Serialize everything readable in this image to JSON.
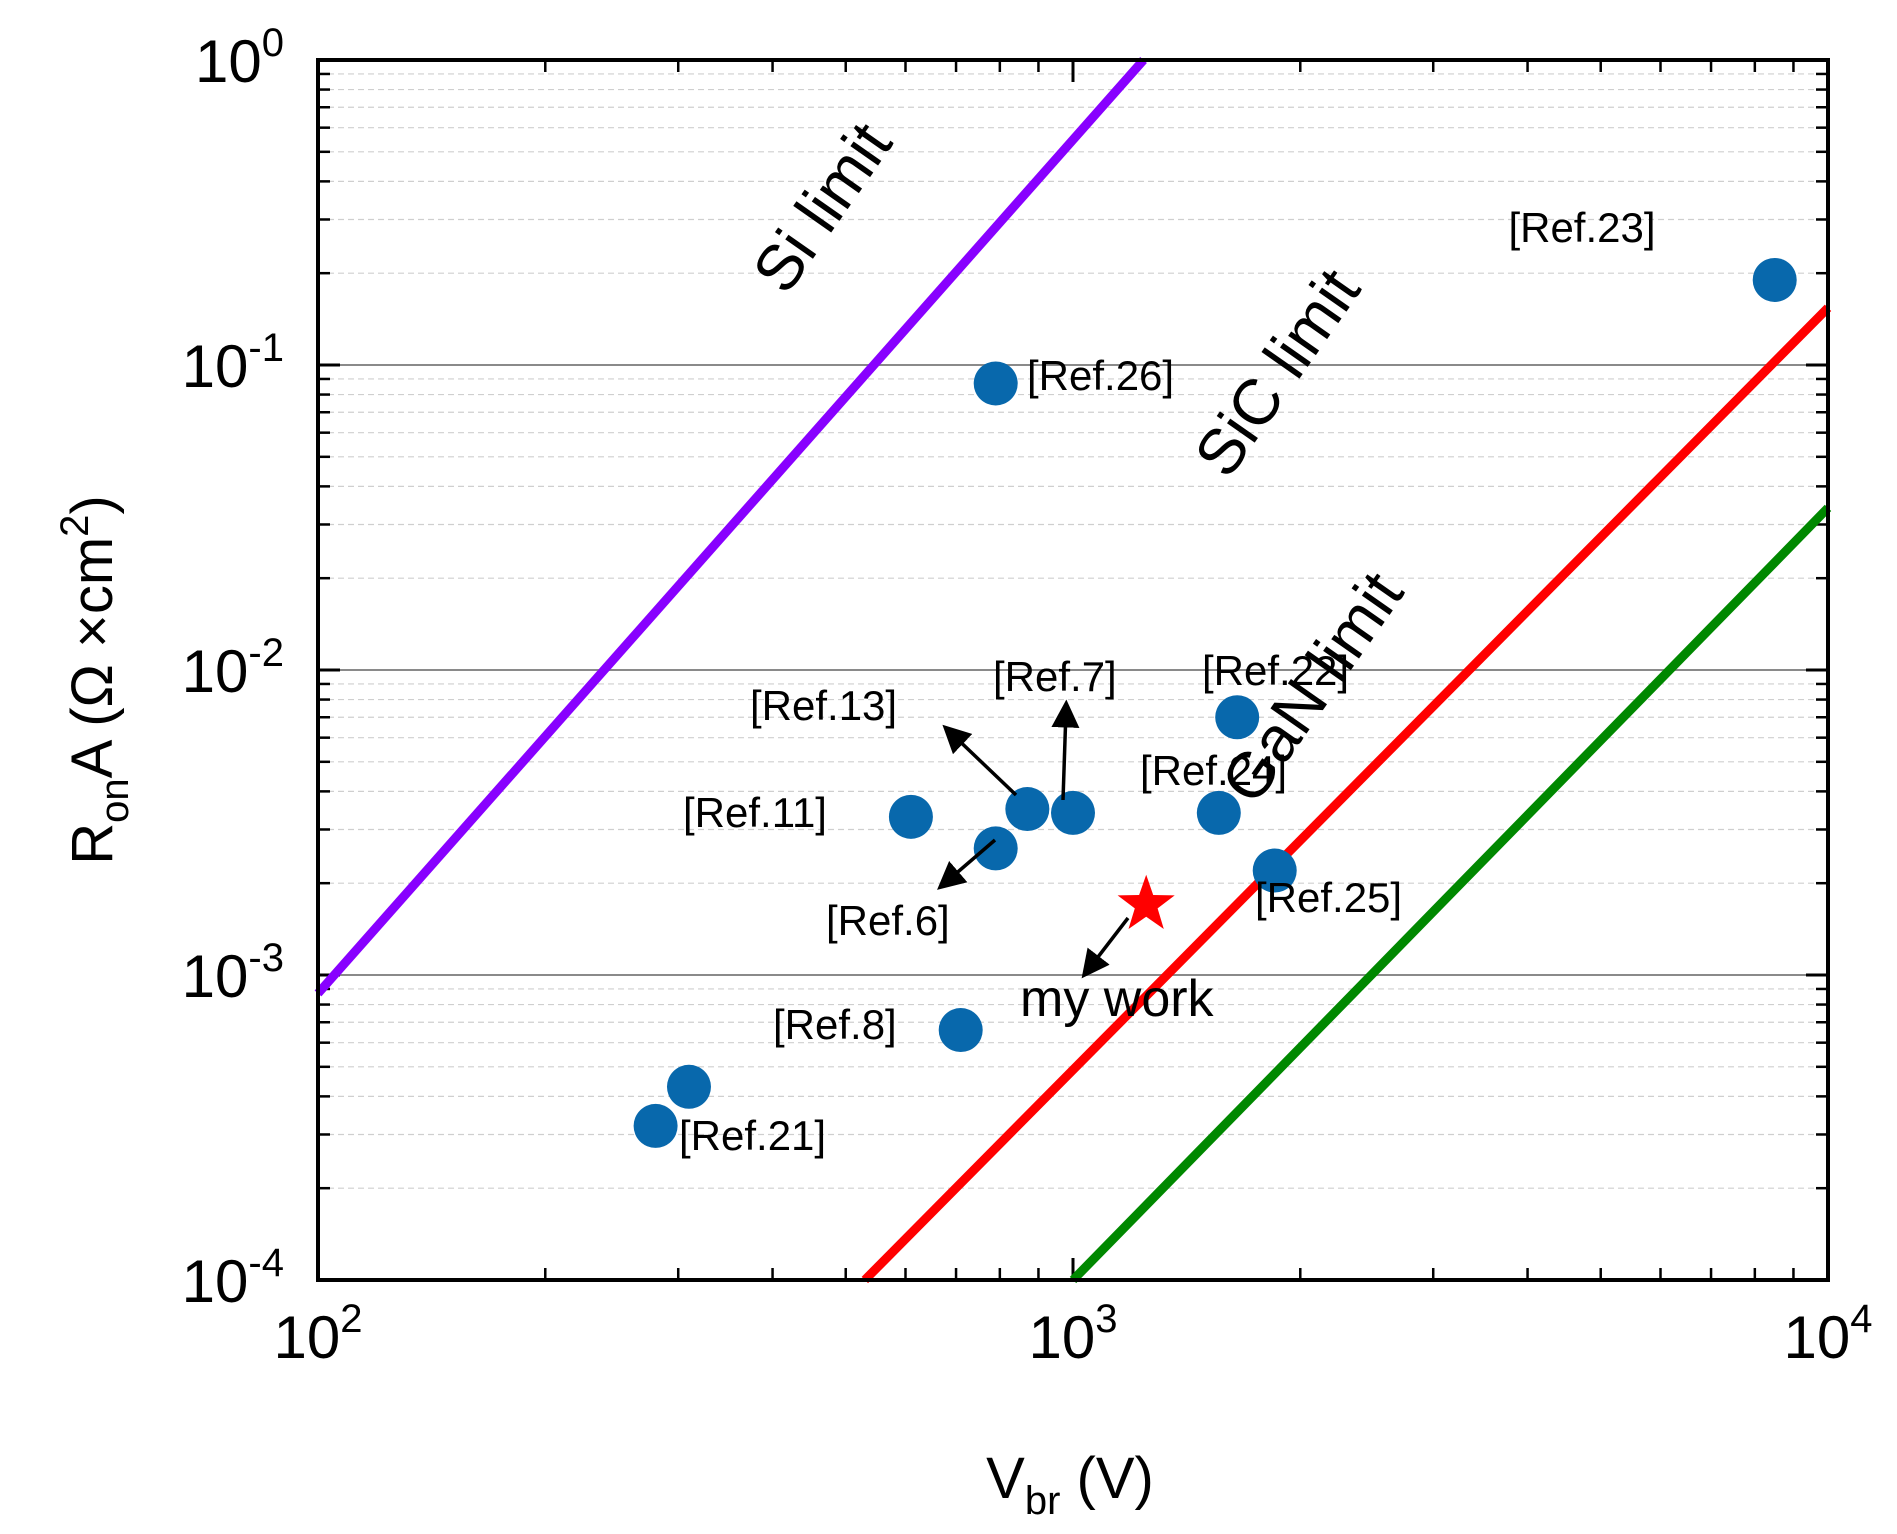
{
  "chart_data": {
    "type": "scatter",
    "xlabel": {
      "main": "V",
      "sub": "br",
      "rest": " (V)"
    },
    "ylabel": {
      "main": "R",
      "sub": "on",
      "mid": "A (Ω ×cm",
      "sup": "2",
      "end": ")"
    },
    "x_scale": "log",
    "y_scale": "log",
    "xlim": [
      100,
      10000
    ],
    "ylim": [
      0.0001,
      1
    ],
    "x_ticks": [
      {
        "value": 100,
        "base": "10",
        "exp": "2"
      },
      {
        "value": 1000,
        "base": "10",
        "exp": "3"
      },
      {
        "value": 10000,
        "base": "10",
        "exp": "4"
      }
    ],
    "y_ticks": [
      {
        "value": 0.0001,
        "base": "10",
        "exp": "-4"
      },
      {
        "value": 0.001,
        "base": "10",
        "exp": "-3"
      },
      {
        "value": 0.01,
        "base": "10",
        "exp": "-2"
      },
      {
        "value": 0.1,
        "base": "10",
        "exp": "-1"
      },
      {
        "value": 1,
        "base": "10",
        "exp": "0"
      }
    ],
    "grid": "major solid gray, minor dashed light gray",
    "colors": {
      "points": "#0868ac",
      "star": "#ff0000",
      "si_limit": "#8800ff",
      "sic_limit": "#ff0000",
      "gan_limit": "#008800"
    },
    "lines": [
      {
        "label": "Si limit",
        "color": "#8800ff",
        "x": [
          100,
          1240
        ],
        "y": [
          0.00087,
          1
        ]
      },
      {
        "label": "SiC limit",
        "color": "#ff0000",
        "x": [
          530,
          10000
        ],
        "y": [
          0.0001,
          0.154
        ]
      },
      {
        "label": "GaN limit",
        "color": "#008800",
        "x": [
          1000,
          10000
        ],
        "y": [
          0.0001,
          0.034
        ]
      }
    ],
    "points": [
      {
        "label": "[Ref.21]",
        "x": [
          280,
          310
        ],
        "y": [
          0.00032,
          0.00043
        ]
      },
      {
        "label": "[Ref.8]",
        "x": [
          710
        ],
        "y": [
          0.00066
        ]
      },
      {
        "label": "[Ref.11]",
        "x": [
          610
        ],
        "y": [
          0.0033
        ]
      },
      {
        "label": "[Ref.6]",
        "x": [
          790
        ],
        "y": [
          0.0026
        ]
      },
      {
        "label": "[Ref.13]",
        "x": [
          870
        ],
        "y": [
          0.0035
        ]
      },
      {
        "label": "[Ref.7]",
        "x": [
          1000
        ],
        "y": [
          0.0034
        ]
      },
      {
        "label": "[Ref.26]",
        "x": [
          790
        ],
        "y": [
          0.087
        ]
      },
      {
        "label": "[Ref.24]",
        "x": [
          1560
        ],
        "y": [
          0.0034
        ]
      },
      {
        "label": "[Ref.22]",
        "x": [
          1650
        ],
        "y": [
          0.007
        ]
      },
      {
        "label": "[Ref.25]",
        "x": [
          1850
        ],
        "y": [
          0.0022
        ]
      },
      {
        "label": "[Ref.23]",
        "x": [
          8500
        ],
        "y": [
          0.19
        ]
      }
    ],
    "my_work": {
      "label": "my work",
      "x": 1250,
      "y": 0.0017
    }
  }
}
